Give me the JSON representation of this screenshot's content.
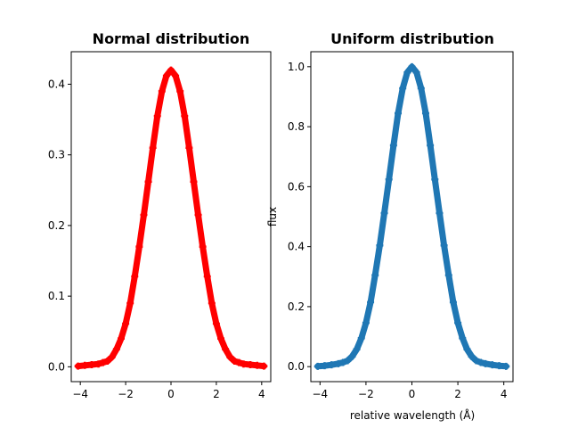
{
  "chart_data": [
    {
      "type": "scatter",
      "title": "Normal distribution",
      "xlabel": "",
      "ylabel": "",
      "xlim": [
        -4.4,
        4.4
      ],
      "ylim": [
        -0.021,
        0.446
      ],
      "xticks": [
        -4,
        -2,
        0,
        2,
        4
      ],
      "xtick_labels": [
        "−4",
        "−2",
        "0",
        "2",
        "4"
      ],
      "yticks": [
        0.0,
        0.1,
        0.2,
        0.3,
        0.4
      ],
      "ytick_labels": [
        "0.0",
        "0.1",
        "0.2",
        "0.3",
        "0.4"
      ],
      "marker": "plus",
      "color": "#ff0000",
      "series": [
        {
          "x": [
            -4.1,
            -3.8,
            -3.5,
            -3.2,
            -3.0,
            -2.8,
            -2.6,
            -2.4,
            -2.2,
            -2.0,
            -1.8,
            -1.6,
            -1.4,
            -1.2,
            -1.0,
            -0.8,
            -0.6,
            -0.4,
            -0.2,
            0.0,
            0.2,
            0.4,
            0.6,
            0.8,
            1.0,
            1.2,
            1.4,
            1.6,
            1.8,
            2.0,
            2.2,
            2.4,
            2.6,
            2.8,
            3.0,
            3.2,
            3.5,
            3.8,
            4.1
          ],
          "y": [
            0.001,
            0.002,
            0.003,
            0.004,
            0.006,
            0.008,
            0.014,
            0.025,
            0.04,
            0.061,
            0.09,
            0.128,
            0.17,
            0.215,
            0.262,
            0.31,
            0.355,
            0.39,
            0.412,
            0.42,
            0.412,
            0.39,
            0.355,
            0.31,
            0.262,
            0.215,
            0.17,
            0.128,
            0.09,
            0.061,
            0.04,
            0.025,
            0.014,
            0.008,
            0.006,
            0.004,
            0.003,
            0.002,
            0.001
          ]
        }
      ]
    },
    {
      "type": "scatter",
      "title": "Uniform distribution",
      "xlabel": "relative wavelength (Å)",
      "ylabel": "flux",
      "xlim": [
        -4.4,
        4.4
      ],
      "ylim": [
        -0.05,
        1.05
      ],
      "xticks": [
        -4,
        -2,
        0,
        2,
        4
      ],
      "xtick_labels": [
        "−4",
        "−2",
        "0",
        "2",
        "4"
      ],
      "yticks": [
        0.0,
        0.2,
        0.4,
        0.6,
        0.8,
        1.0
      ],
      "ytick_labels": [
        "0.0",
        "0.2",
        "0.4",
        "0.6",
        "0.8",
        "1.0"
      ],
      "marker": "plus",
      "color": "#1f77b4",
      "series": [
        {
          "x": [
            -4.1,
            -3.8,
            -3.5,
            -3.2,
            -3.0,
            -2.8,
            -2.6,
            -2.4,
            -2.2,
            -2.0,
            -1.8,
            -1.6,
            -1.4,
            -1.2,
            -1.0,
            -0.8,
            -0.6,
            -0.4,
            -0.2,
            0.0,
            0.2,
            0.4,
            0.6,
            0.8,
            1.0,
            1.2,
            1.4,
            1.6,
            1.8,
            2.0,
            2.2,
            2.4,
            2.6,
            2.8,
            3.0,
            3.2,
            3.5,
            3.8,
            4.1
          ],
          "y": [
            0.001,
            0.003,
            0.006,
            0.01,
            0.014,
            0.02,
            0.034,
            0.058,
            0.095,
            0.146,
            0.215,
            0.305,
            0.404,
            0.512,
            0.624,
            0.738,
            0.845,
            0.928,
            0.981,
            1.0,
            0.981,
            0.928,
            0.845,
            0.738,
            0.624,
            0.512,
            0.404,
            0.305,
            0.215,
            0.146,
            0.095,
            0.058,
            0.034,
            0.02,
            0.014,
            0.01,
            0.006,
            0.003,
            0.001
          ]
        }
      ]
    }
  ]
}
